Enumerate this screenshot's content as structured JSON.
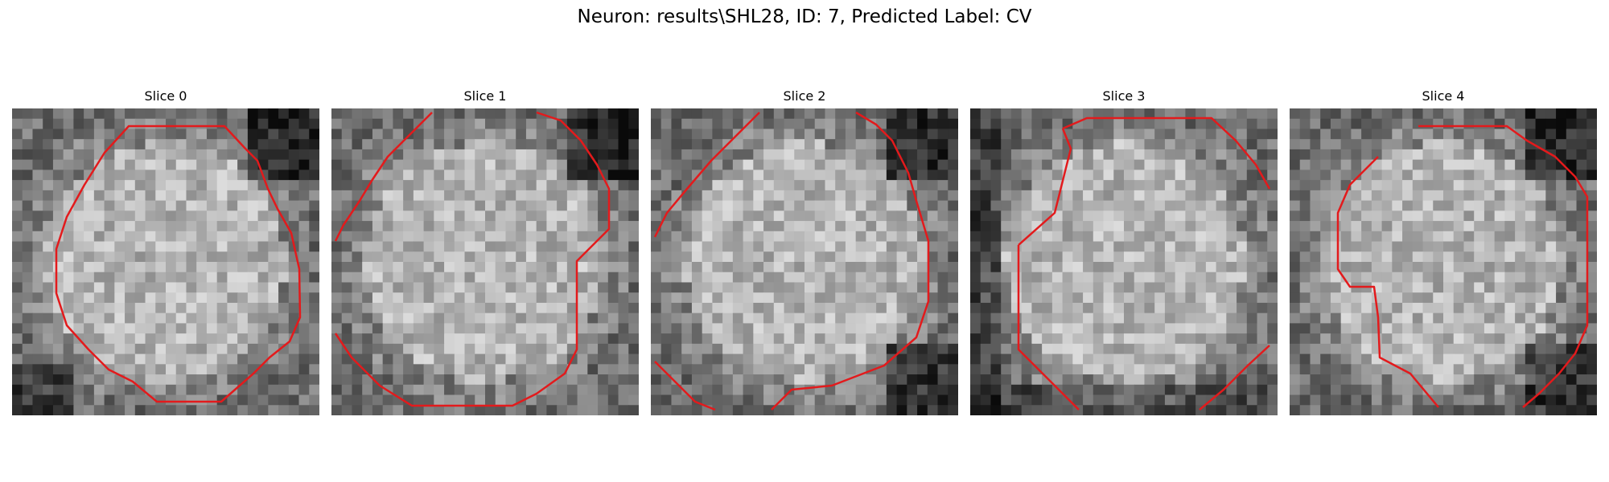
{
  "figure": {
    "title": "Neuron: results\\SHL28, ID: 7, Predicted Label: CV"
  },
  "panels": [
    {
      "title": "Slice 0",
      "seed": 11,
      "dark_corners": [
        "tr",
        "bl"
      ]
    },
    {
      "title": "Slice 1",
      "seed": 23,
      "dark_corners": [
        "tr"
      ]
    },
    {
      "title": "Slice 2",
      "seed": 37,
      "dark_corners": [
        "tr",
        "br"
      ]
    },
    {
      "title": "Slice 3",
      "seed": 51,
      "dark_corners": [
        "l",
        "b"
      ]
    },
    {
      "title": "Slice 4",
      "seed": 67,
      "dark_corners": [
        "tr",
        "br"
      ]
    }
  ],
  "colors": {
    "contour": "#e31a1c",
    "background": "#ffffff"
  }
}
